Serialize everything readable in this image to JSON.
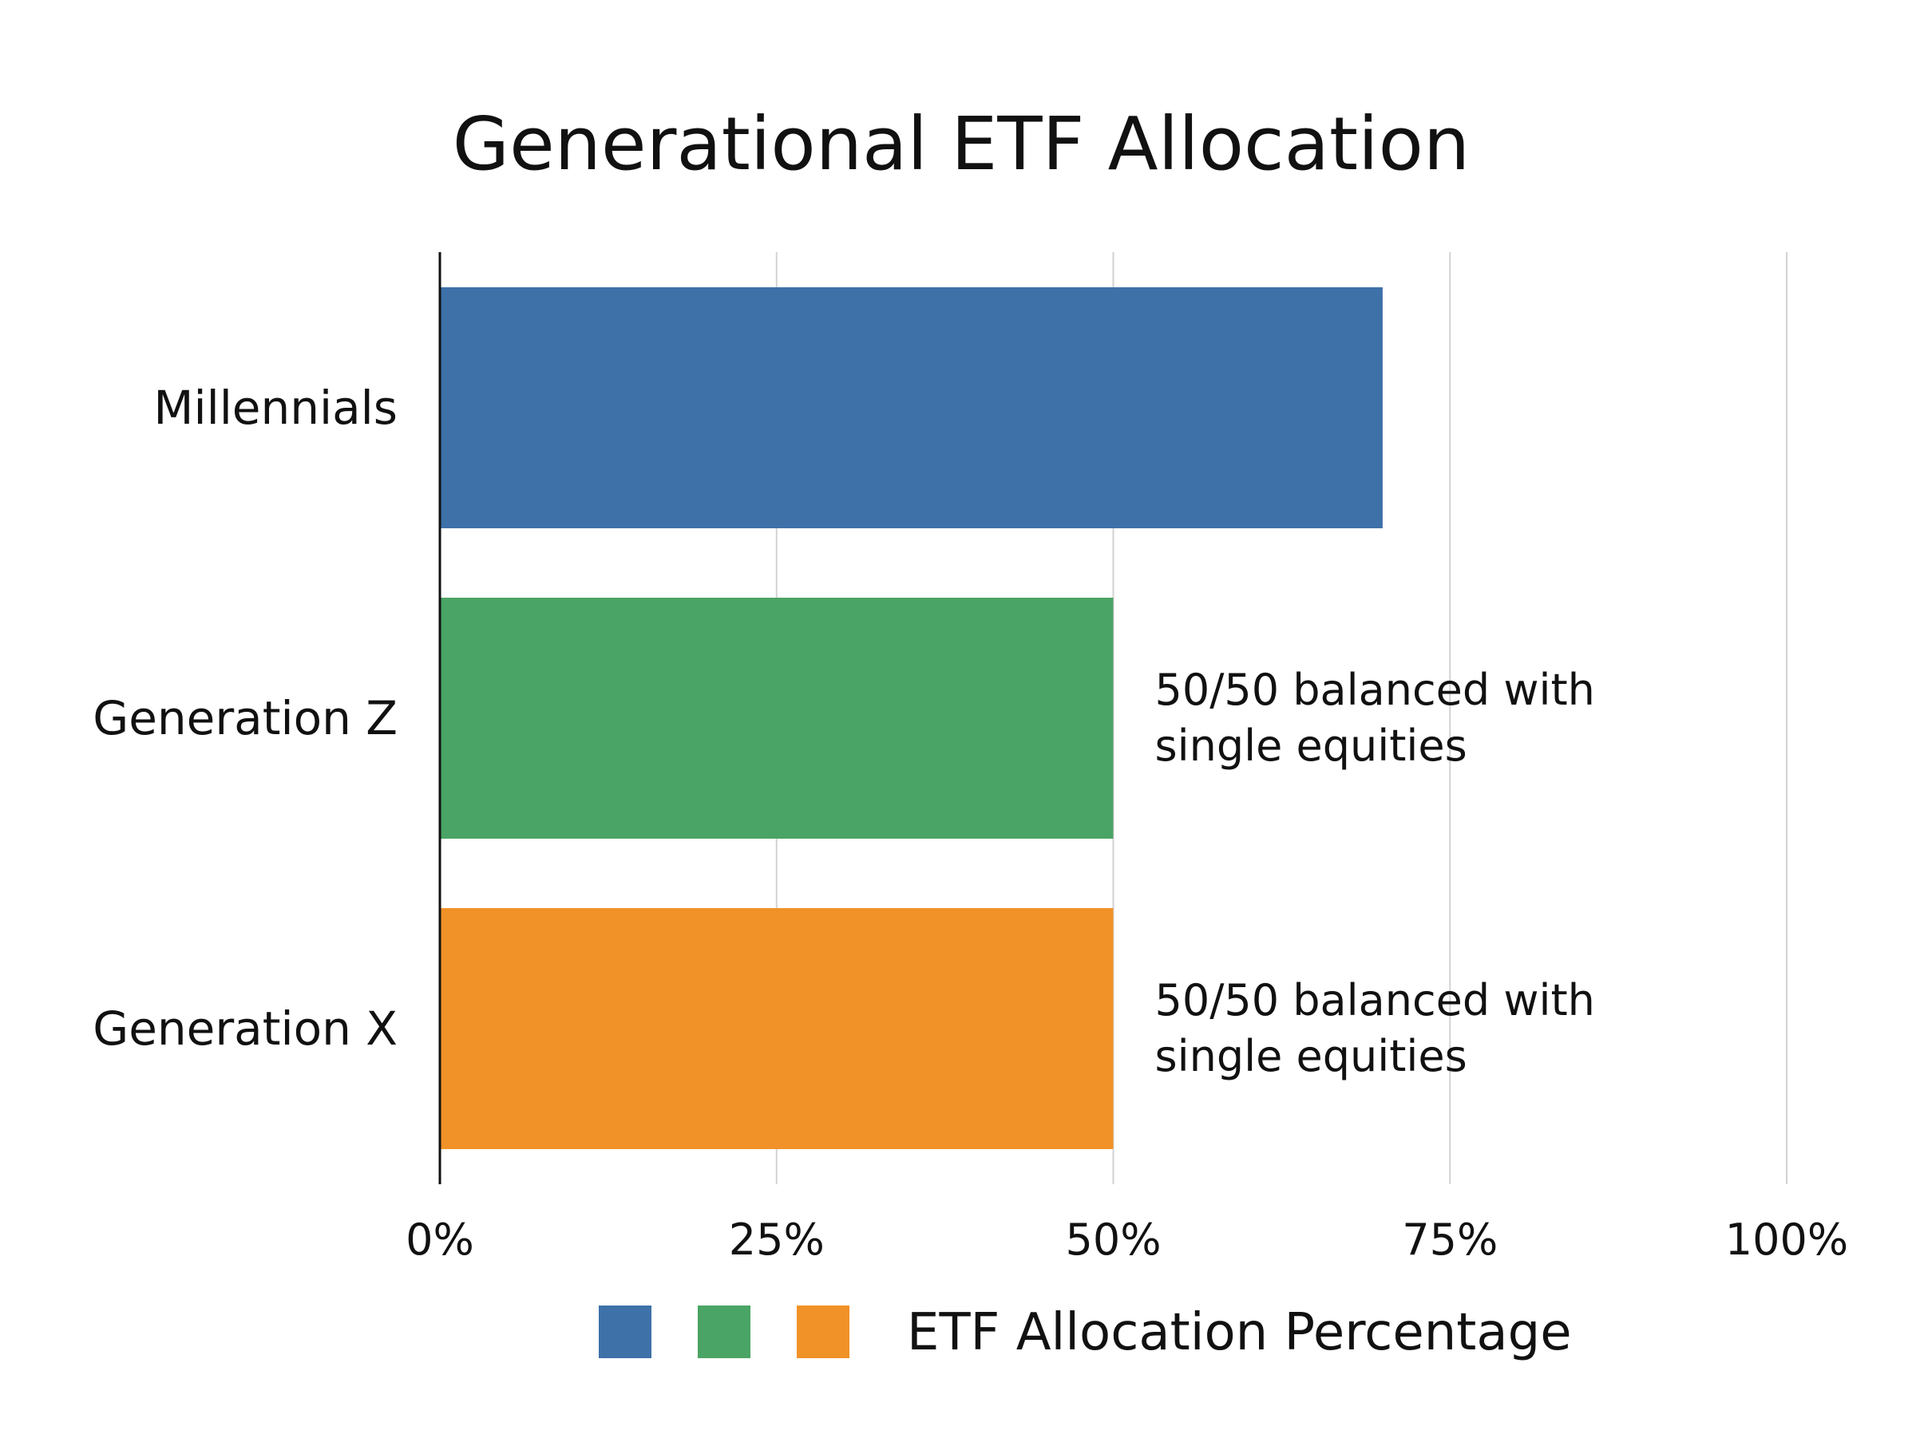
{
  "chart_data": {
    "type": "bar",
    "orientation": "horizontal",
    "title": "Generational ETF Allocation",
    "categories": [
      "Millennials",
      "Generation Z",
      "Generation X"
    ],
    "values": [
      70,
      50,
      50
    ],
    "colors": [
      "#3d71a8",
      "#4aa465",
      "#f09227"
    ],
    "annotations": [
      null,
      [
        "50/50 balanced with",
        "single equities"
      ],
      [
        "50/50 balanced with",
        "single equities"
      ]
    ],
    "xlim": [
      0,
      100
    ],
    "xticks": [
      "0%",
      "25%",
      "50%",
      "75%",
      "100%"
    ],
    "grid": true,
    "legend": {
      "position": "bottom",
      "label": "ETF Allocation Percentage"
    }
  }
}
